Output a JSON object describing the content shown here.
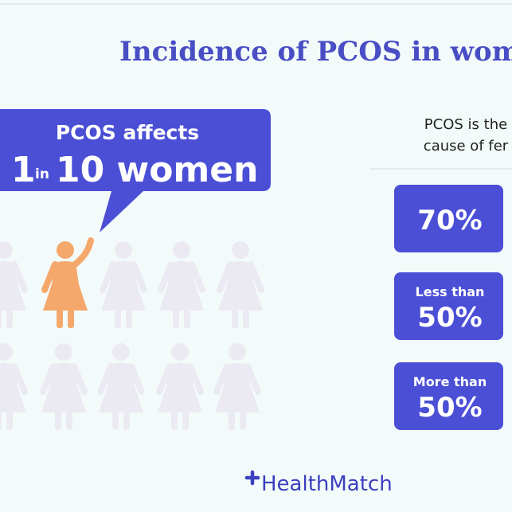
{
  "header": {
    "title": "Incidence of PCOS in wome"
  },
  "callout": {
    "line1": "PCOS affects",
    "big_number": "1",
    "connector": "in",
    "rest": "10 women"
  },
  "side": {
    "line1": "PCOS is the",
    "line2": "cause of fer"
  },
  "cards": [
    {
      "label": null,
      "value": "70%"
    },
    {
      "label": "Less than",
      "value": "50%"
    },
    {
      "label": "More than",
      "value": "50%"
    }
  ],
  "footer": {
    "brand": "HealthMatch"
  }
}
